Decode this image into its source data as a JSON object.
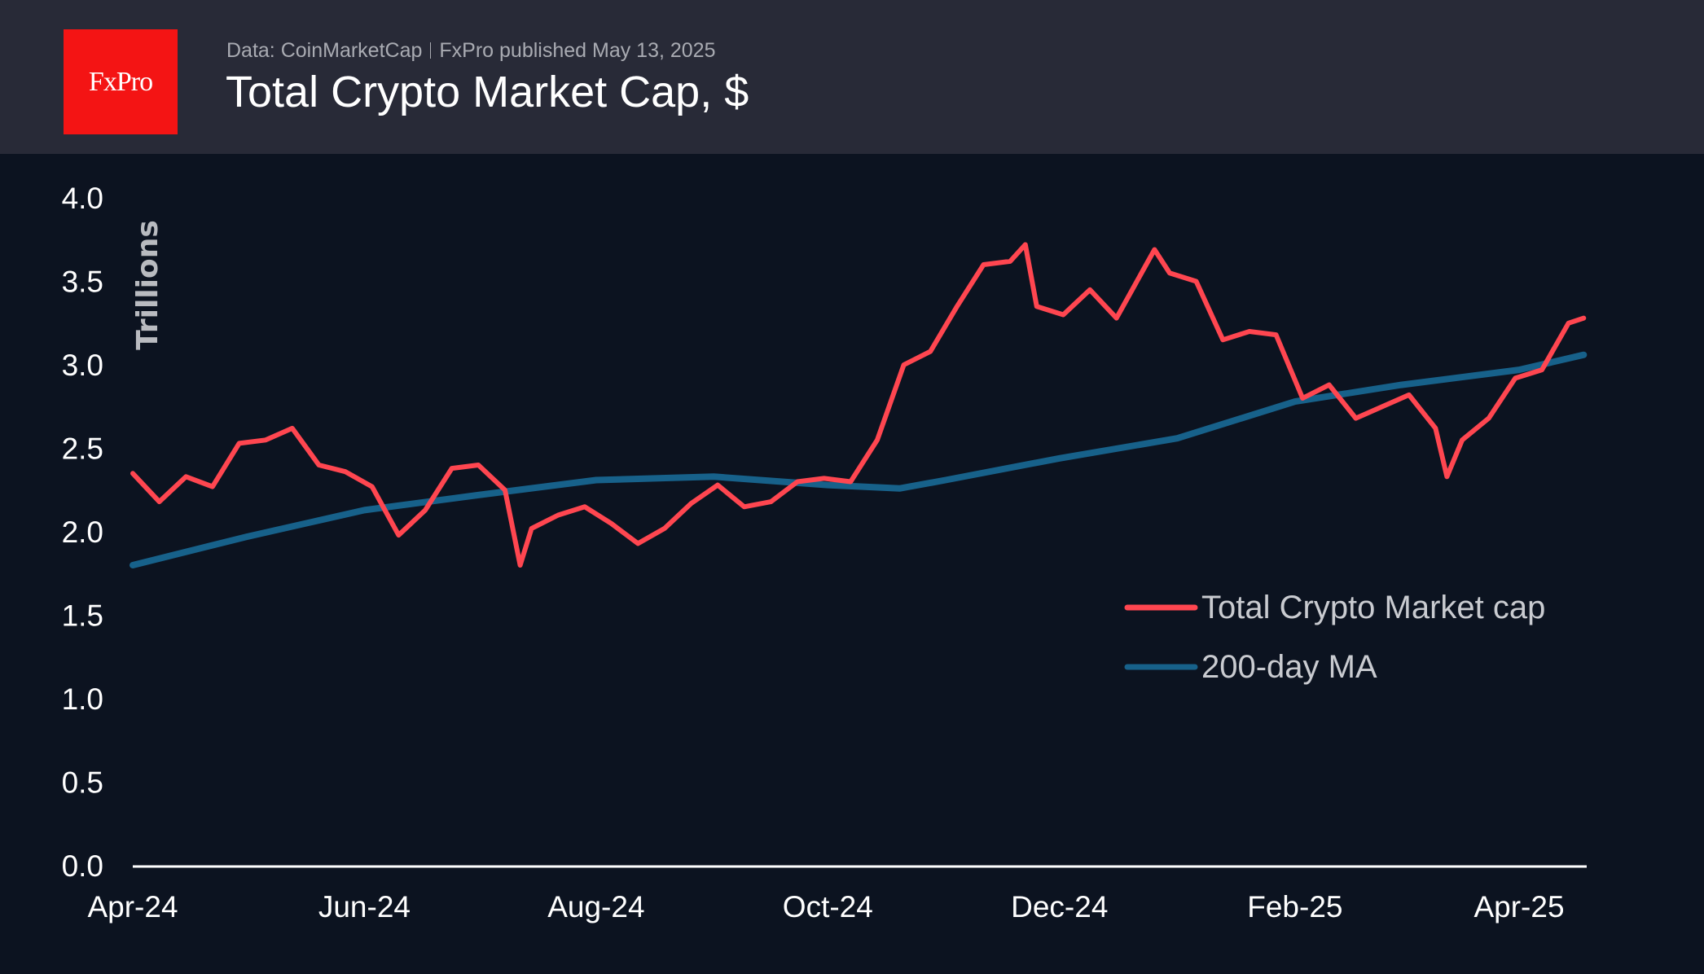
{
  "header": {
    "logo_text": "FxPro",
    "source": "Data: CoinMarketCap",
    "publisher": "FxPro published May 13, 2025",
    "title": "Total Crypto Market Cap, $"
  },
  "colors": {
    "header_bg": "#282a37",
    "plot_bg": "#0c1320",
    "logo": "#f41414",
    "market_cap": "#ff4650",
    "ma": "#17618a"
  },
  "chart_data": {
    "type": "line",
    "title": "Total Crypto Market Cap, $",
    "ylabel": "Trillions",
    "xlabel": "",
    "ylim": [
      0,
      4.0
    ],
    "yticks": [
      "0.0",
      "0.5",
      "1.0",
      "1.5",
      "2.0",
      "2.5",
      "3.0",
      "3.5",
      "4.0"
    ],
    "xticks": [
      {
        "date": "2024-04-01",
        "label": "Apr-24"
      },
      {
        "date": "2024-06-01",
        "label": "Jun-24"
      },
      {
        "date": "2024-08-01",
        "label": "Aug-24"
      },
      {
        "date": "2024-10-01",
        "label": "Oct-24"
      },
      {
        "date": "2024-12-01",
        "label": "Dec-24"
      },
      {
        "date": "2025-02-01",
        "label": "Feb-25"
      },
      {
        "date": "2025-04-01",
        "label": "Apr-25"
      }
    ],
    "grid": false,
    "legend_position": "right",
    "series": [
      {
        "name": "Total Crypto Market cap",
        "color": "#ff4650",
        "points": [
          [
            "2024-04-01",
            2.35
          ],
          [
            "2024-04-08",
            2.18
          ],
          [
            "2024-04-15",
            2.33
          ],
          [
            "2024-04-22",
            2.27
          ],
          [
            "2024-04-29",
            2.53
          ],
          [
            "2024-05-06",
            2.55
          ],
          [
            "2024-05-13",
            2.62
          ],
          [
            "2024-05-20",
            2.4
          ],
          [
            "2024-05-27",
            2.36
          ],
          [
            "2024-06-03",
            2.27
          ],
          [
            "2024-06-10",
            1.98
          ],
          [
            "2024-06-17",
            2.13
          ],
          [
            "2024-06-24",
            2.38
          ],
          [
            "2024-07-01",
            2.4
          ],
          [
            "2024-07-08",
            2.25
          ],
          [
            "2024-07-12",
            1.8
          ],
          [
            "2024-07-15",
            2.02
          ],
          [
            "2024-07-22",
            2.1
          ],
          [
            "2024-07-29",
            2.15
          ],
          [
            "2024-08-05",
            2.05
          ],
          [
            "2024-08-12",
            1.93
          ],
          [
            "2024-08-19",
            2.02
          ],
          [
            "2024-08-26",
            2.17
          ],
          [
            "2024-09-02",
            2.28
          ],
          [
            "2024-09-09",
            2.15
          ],
          [
            "2024-09-16",
            2.18
          ],
          [
            "2024-09-23",
            2.3
          ],
          [
            "2024-09-30",
            2.32
          ],
          [
            "2024-10-07",
            2.3
          ],
          [
            "2024-10-14",
            2.55
          ],
          [
            "2024-10-21",
            3.0
          ],
          [
            "2024-10-28",
            3.08
          ],
          [
            "2024-11-04",
            3.35
          ],
          [
            "2024-11-11",
            3.6
          ],
          [
            "2024-11-18",
            3.62
          ],
          [
            "2024-11-22",
            3.72
          ],
          [
            "2024-11-25",
            3.35
          ],
          [
            "2024-12-02",
            3.3
          ],
          [
            "2024-12-09",
            3.45
          ],
          [
            "2024-12-16",
            3.28
          ],
          [
            "2024-12-26",
            3.69
          ],
          [
            "2024-12-30",
            3.55
          ],
          [
            "2025-01-06",
            3.5
          ],
          [
            "2025-01-13",
            3.15
          ],
          [
            "2025-01-20",
            3.2
          ],
          [
            "2025-01-27",
            3.18
          ],
          [
            "2025-02-03",
            2.8
          ],
          [
            "2025-02-10",
            2.88
          ],
          [
            "2025-02-17",
            2.68
          ],
          [
            "2025-02-24",
            2.75
          ],
          [
            "2025-03-03",
            2.82
          ],
          [
            "2025-03-10",
            2.62
          ],
          [
            "2025-03-13",
            2.33
          ],
          [
            "2025-03-17",
            2.55
          ],
          [
            "2025-03-24",
            2.68
          ],
          [
            "2025-03-31",
            2.92
          ],
          [
            "2025-04-07",
            2.97
          ],
          [
            "2025-04-14",
            3.25
          ],
          [
            "2025-04-18",
            3.28
          ]
        ]
      },
      {
        "name": "200-day MA",
        "color": "#17618a",
        "points": [
          [
            "2024-04-01",
            1.8
          ],
          [
            "2024-05-01",
            1.97
          ],
          [
            "2024-06-01",
            2.13
          ],
          [
            "2024-07-01",
            2.22
          ],
          [
            "2024-08-01",
            2.31
          ],
          [
            "2024-09-01",
            2.33
          ],
          [
            "2024-10-01",
            2.28
          ],
          [
            "2024-10-20",
            2.26
          ],
          [
            "2024-11-01",
            2.31
          ],
          [
            "2024-12-01",
            2.44
          ],
          [
            "2025-01-01",
            2.56
          ],
          [
            "2025-02-01",
            2.78
          ],
          [
            "2025-03-01",
            2.88
          ],
          [
            "2025-04-01",
            2.97
          ],
          [
            "2025-04-18",
            3.06
          ]
        ]
      }
    ]
  }
}
